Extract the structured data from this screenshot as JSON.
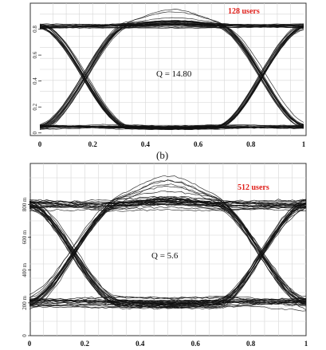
{
  "caption": "(b)",
  "chart_data": [
    {
      "type": "line",
      "subtype": "eye-diagram",
      "users_label": "128 users",
      "q_label": "Q = 14.80",
      "x": [
        0,
        0.2,
        0.4,
        0.6,
        0.8,
        1
      ],
      "x_tick_labels": [
        "0",
        "0.2",
        "0.4",
        "0.6",
        "0.8",
        "1"
      ],
      "xlim": [
        0,
        1
      ],
      "ylim": [
        -0.02,
        1.0
      ],
      "y_ticks": [
        0,
        0.2,
        0.4,
        0.6,
        0.8
      ],
      "y_tick_labels": [
        "0",
        "0.2",
        "0.4",
        "0.6",
        "0.8"
      ],
      "grid": true,
      "levels": {
        "high": 0.82,
        "low": 0.05
      },
      "crossings": [
        0.17,
        0.84
      ],
      "trace_color": "#111111"
    },
    {
      "type": "line",
      "subtype": "eye-diagram",
      "users_label": "512 users",
      "q_label": "Q = 5.6",
      "x": [
        0,
        0.2,
        0.4,
        0.6,
        0.8,
        1
      ],
      "x_tick_labels": [
        "0",
        "0.2",
        "0.4",
        "0.6",
        "0.8",
        "1"
      ],
      "xlim": [
        0,
        1
      ],
      "ylim": [
        0,
        1050
      ],
      "y_ticks": [
        0,
        200,
        400,
        600,
        800
      ],
      "y_tick_labels": [
        "0",
        "200 m",
        "400 m",
        "600 m",
        "800 m"
      ],
      "grid": true,
      "levels": {
        "high": 800,
        "low": 200
      },
      "crossings": [
        0.16,
        0.84
      ],
      "trace_color": "#111111"
    }
  ]
}
